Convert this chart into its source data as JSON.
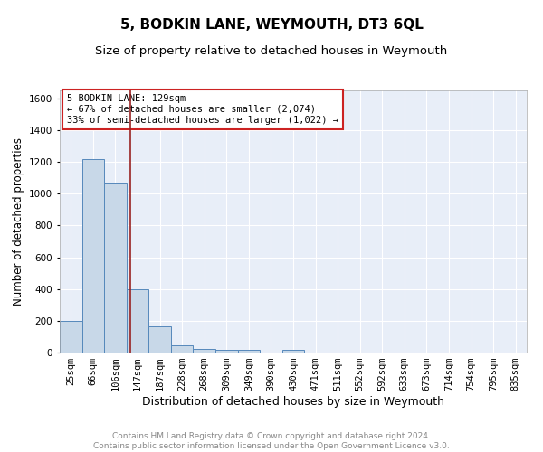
{
  "title": "5, BODKIN LANE, WEYMOUTH, DT3 6QL",
  "subtitle": "Size of property relative to detached houses in Weymouth",
  "xlabel": "Distribution of detached houses by size in Weymouth",
  "ylabel": "Number of detached properties",
  "bin_labels": [
    "25sqm",
    "66sqm",
    "106sqm",
    "147sqm",
    "187sqm",
    "228sqm",
    "268sqm",
    "309sqm",
    "349sqm",
    "390sqm",
    "430sqm",
    "471sqm",
    "511sqm",
    "552sqm",
    "592sqm",
    "633sqm",
    "673sqm",
    "714sqm",
    "754sqm",
    "795sqm",
    "835sqm"
  ],
  "bar_values": [
    200,
    1220,
    1070,
    400,
    165,
    48,
    25,
    18,
    15,
    0,
    15,
    0,
    0,
    0,
    0,
    0,
    0,
    0,
    0,
    0,
    0
  ],
  "bar_color": "#c8d8e8",
  "bar_edge_color": "#5588bb",
  "background_color": "#e8eef8",
  "grid_color": "#ffffff",
  "fig_background": "#ffffff",
  "vline_x": 2.67,
  "vline_color": "#992222",
  "annotation_text": "5 BODKIN LANE: 129sqm\n← 67% of detached houses are smaller (2,074)\n33% of semi-detached houses are larger (1,022) →",
  "annotation_box_color": "#ffffff",
  "annotation_box_edge": "#cc2222",
  "ylim": [
    0,
    1650
  ],
  "yticks": [
    0,
    200,
    400,
    600,
    800,
    1000,
    1200,
    1400,
    1600
  ],
  "footer_text": "Contains HM Land Registry data © Crown copyright and database right 2024.\nContains public sector information licensed under the Open Government Licence v3.0.",
  "title_fontsize": 11,
  "subtitle_fontsize": 9.5,
  "xlabel_fontsize": 9,
  "ylabel_fontsize": 8.5,
  "footer_fontsize": 6.5,
  "tick_fontsize": 7.5,
  "ann_fontsize": 7.5
}
